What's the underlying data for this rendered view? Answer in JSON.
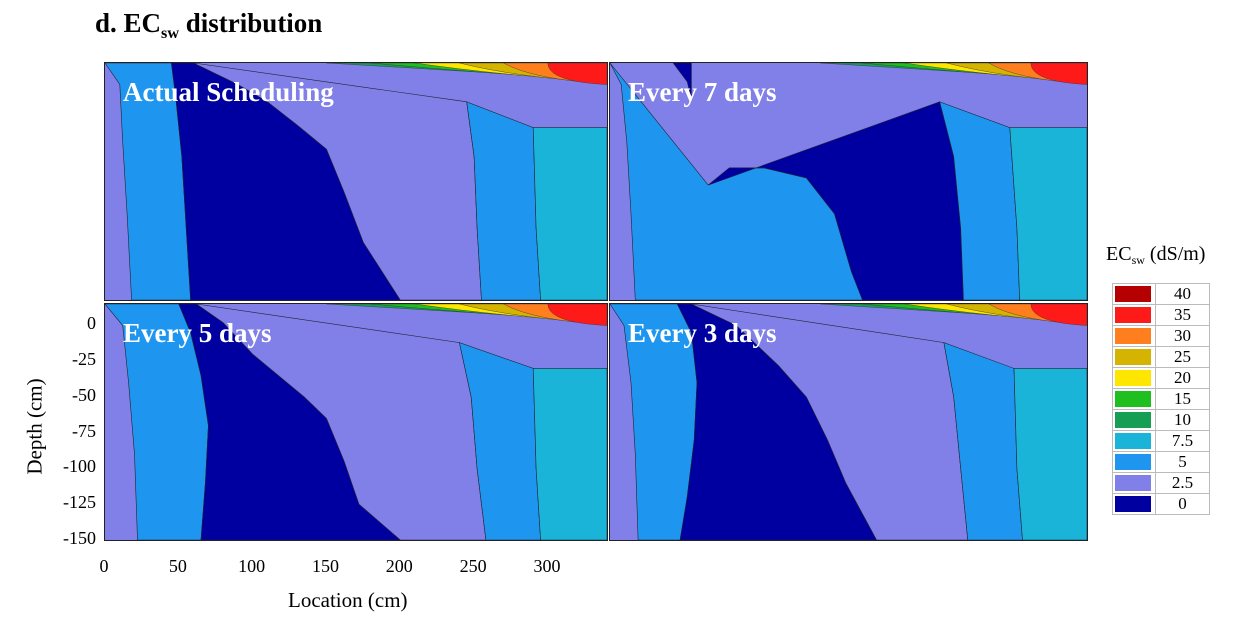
{
  "figure_title": {
    "prefix": "d. EC",
    "sub": "sw",
    "suffix": " distribution"
  },
  "chart_data": {
    "type": "heatmap",
    "xlabel": "Location (cm)",
    "ylabel": "Depth (cm)",
    "xlim": [
      0,
      340
    ],
    "ylim": [
      -150,
      15
    ],
    "x_ticks": [
      "0",
      "50",
      "100",
      "150",
      "200",
      "250",
      "300"
    ],
    "y_ticks": [
      "0",
      "-25",
      "-50",
      "-75",
      "-100",
      "-125",
      "-150"
    ],
    "legend_title": {
      "prefix": "EC",
      "sub": "sw",
      "suffix": " (dS/m)"
    },
    "legend_position": "right",
    "levels": [
      "40",
      "35",
      "30",
      "25",
      "20",
      "15",
      "10",
      "7.5",
      "5",
      "2.5",
      "0"
    ],
    "level_colors": [
      "#b40000",
      "#ff1a1a",
      "#ff7f1f",
      "#d4b400",
      "#ffe600",
      "#1fbf1f",
      "#169e55",
      "#1ab4d8",
      "#1e96f0",
      "#8080e8",
      "#0000a0"
    ],
    "panels": [
      {
        "label": "Actual Scheduling",
        "boundaries": [
          {
            "level": "5",
            "points": [
              [
                0,
                15
              ],
              [
                10,
                0
              ],
              [
                12,
                -40
              ],
              [
                15,
                -90
              ],
              [
                18,
                -150
              ]
            ]
          },
          {
            "level": "0",
            "points": [
              [
                45,
                15
              ],
              [
                48,
                -10
              ],
              [
                52,
                -50
              ],
              [
                55,
                -100
              ],
              [
                58,
                -150
              ]
            ]
          },
          {
            "level": "2.5",
            "points": [
              [
                60,
                15
              ],
              [
                90,
                0
              ],
              [
                110,
                -12
              ],
              [
                130,
                -28
              ],
              [
                150,
                -45
              ],
              [
                162,
                -75
              ],
              [
                175,
                -110
              ],
              [
                200,
                -150
              ]
            ]
          },
          {
            "level": "5",
            "points": [
              [
                245,
                -12
              ],
              [
                250,
                -50
              ],
              [
                252,
                -100
              ],
              [
                255,
                -150
              ]
            ]
          },
          {
            "level": "7.5",
            "points": [
              [
                290,
                -30
              ],
              [
                292,
                -100
              ],
              [
                295,
                -150
              ]
            ]
          }
        ]
      },
      {
        "label": "Every 7 days",
        "boundaries": [
          {
            "level": "5",
            "points": [
              [
                0,
                15
              ],
              [
                8,
                0
              ],
              [
                12,
                -40
              ],
              [
                15,
                -90
              ],
              [
                18,
                -150
              ]
            ]
          },
          {
            "level": "0",
            "points": [
              [
                45,
                15
              ],
              [
                55,
                2
              ],
              [
                58,
                -10
              ]
            ]
          },
          {
            "level": "0",
            "points": [
              [
                70,
                -70
              ],
              [
                85,
                -58
              ],
              [
                110,
                -58
              ],
              [
                140,
                -65
              ],
              [
                160,
                -90
              ],
              [
                172,
                -130
              ],
              [
                180,
                -150
              ]
            ]
          },
          {
            "level": "5",
            "points": [
              [
                235,
                -12
              ],
              [
                245,
                -50
              ],
              [
                250,
                -100
              ],
              [
                252,
                -150
              ]
            ]
          },
          {
            "level": "7.5",
            "points": [
              [
                285,
                -30
              ],
              [
                290,
                -100
              ],
              [
                292,
                -150
              ]
            ]
          }
        ]
      },
      {
        "label": "Every 5 days",
        "boundaries": [
          {
            "level": "5",
            "points": [
              [
                0,
                15
              ],
              [
                12,
                0
              ],
              [
                16,
                -40
              ],
              [
                20,
                -90
              ],
              [
                22,
                -150
              ]
            ]
          },
          {
            "level": "0",
            "points": [
              [
                50,
                15
              ],
              [
                58,
                -5
              ],
              [
                65,
                -35
              ],
              [
                70,
                -70
              ],
              [
                68,
                -110
              ],
              [
                65,
                -150
              ]
            ]
          },
          {
            "level": "2.5",
            "points": [
              [
                62,
                15
              ],
              [
                80,
                2
              ],
              [
                100,
                -20
              ],
              [
                135,
                -50
              ],
              [
                150,
                -65
              ],
              [
                162,
                -95
              ],
              [
                172,
                -125
              ],
              [
                200,
                -150
              ]
            ]
          },
          {
            "level": "5",
            "points": [
              [
                240,
                -12
              ],
              [
                248,
                -50
              ],
              [
                252,
                -100
              ],
              [
                258,
                -150
              ]
            ]
          },
          {
            "level": "7.5",
            "points": [
              [
                290,
                -30
              ],
              [
                292,
                -100
              ],
              [
                295,
                -150
              ]
            ]
          }
        ]
      },
      {
        "label": "Every 3 days",
        "boundaries": [
          {
            "level": "5",
            "points": [
              [
                0,
                15
              ],
              [
                10,
                0
              ],
              [
                15,
                -40
              ],
              [
                18,
                -90
              ],
              [
                20,
                -150
              ]
            ]
          },
          {
            "level": "0",
            "points": [
              [
                48,
                15
              ],
              [
                58,
                -5
              ],
              [
                62,
                -40
              ],
              [
                60,
                -80
              ],
              [
                55,
                -120
              ],
              [
                50,
                -150
              ]
            ]
          },
          {
            "level": "2.5",
            "points": [
              [
                58,
                15
              ],
              [
                90,
                0
              ],
              [
                120,
                -28
              ],
              [
                140,
                -50
              ],
              [
                155,
                -80
              ],
              [
                168,
                -110
              ],
              [
                190,
                -150
              ]
            ]
          },
          {
            "level": "5",
            "points": [
              [
                238,
                -12
              ],
              [
                245,
                -50
              ],
              [
                250,
                -100
              ],
              [
                255,
                -150
              ]
            ]
          },
          {
            "level": "7.5",
            "points": [
              [
                288,
                -30
              ],
              [
                290,
                -100
              ],
              [
                294,
                -150
              ]
            ]
          }
        ]
      }
    ]
  }
}
